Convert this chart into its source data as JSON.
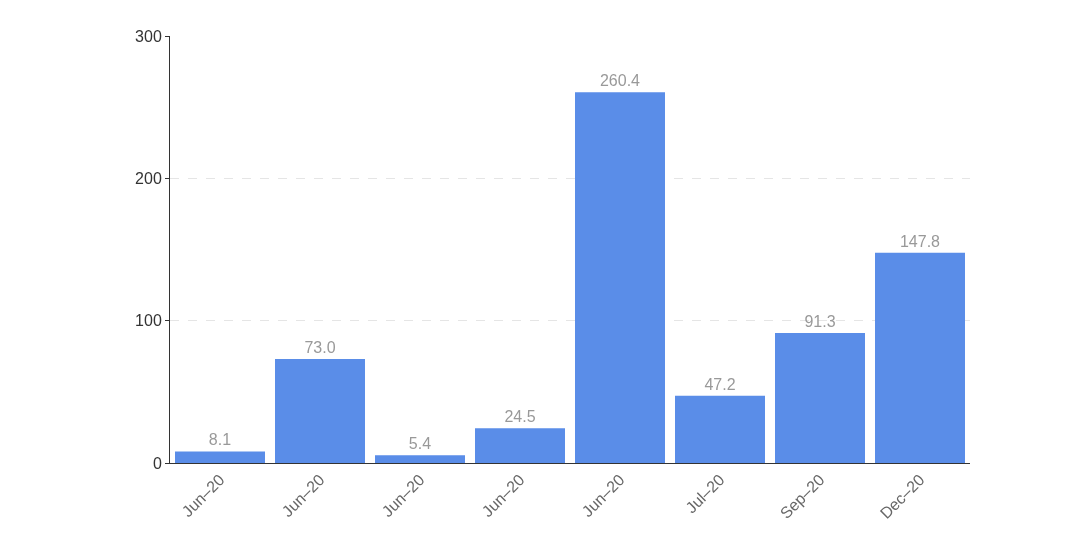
{
  "chart_data": {
    "type": "bar",
    "categories": [
      "Jun–20",
      "Jun–20",
      "Jun–20",
      "Jun–20",
      "Jun–20",
      "Jul–20",
      "Sep–20",
      "Dec–20"
    ],
    "values": [
      8.1,
      73.0,
      5.4,
      24.5,
      260.4,
      47.2,
      91.3,
      147.8
    ],
    "value_labels": [
      "8.1",
      "73.0",
      "5.4",
      "24.5",
      "260.4",
      "47.2",
      "91.3",
      "147.8"
    ],
    "color": "#5a8de8",
    "ylim": [
      0,
      300
    ],
    "yticks": [
      0,
      100,
      200,
      300
    ],
    "grid": "y",
    "legend": false
  }
}
